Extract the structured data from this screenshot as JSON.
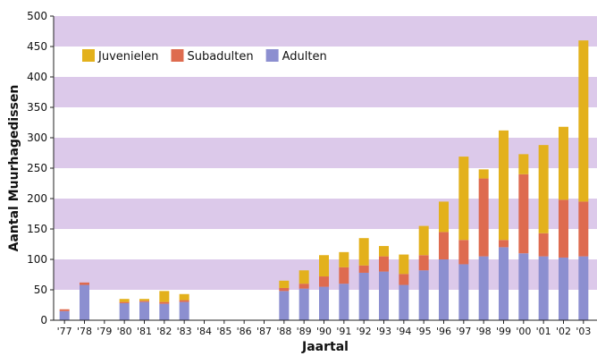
{
  "chart_data": {
    "type": "bar",
    "stacked": true,
    "xlabel": "Jaartal",
    "ylabel": "Aantal Muurhagedissen",
    "ylim": [
      0,
      500
    ],
    "yticks": [
      0,
      50,
      100,
      150,
      200,
      250,
      300,
      350,
      400,
      450,
      500
    ],
    "grid": "alternating horizontal bands",
    "legend_position": "top-left",
    "categories": [
      "'77",
      "'78",
      "'79",
      "'80",
      "'81",
      "'82",
      "'83",
      "'84",
      "'85",
      "'86",
      "'87",
      "'88",
      "'89",
      "'90",
      "'91",
      "'92",
      "'93",
      "'94",
      "'95",
      "'96",
      "'97",
      "'98",
      "'99",
      "'00",
      "'01",
      "'02",
      "'03"
    ],
    "series": [
      {
        "name": "Adulten",
        "color": "#8c8fd0",
        "values": [
          15,
          58,
          0,
          28,
          30,
          27,
          30,
          0,
          0,
          0,
          0,
          48,
          52,
          55,
          60,
          78,
          80,
          58,
          82,
          100,
          92,
          105,
          120,
          110,
          105,
          103,
          105
        ]
      },
      {
        "name": "Subadulten",
        "color": "#de6b4f",
        "values": [
          3,
          4,
          0,
          2,
          2,
          3,
          3,
          0,
          0,
          0,
          0,
          5,
          8,
          17,
          27,
          12,
          25,
          18,
          25,
          45,
          40,
          128,
          12,
          130,
          38,
          95,
          90
        ]
      },
      {
        "name": "Juvenielen",
        "color": "#e3b11c",
        "values": [
          0,
          0,
          0,
          5,
          3,
          18,
          10,
          0,
          0,
          0,
          0,
          12,
          22,
          35,
          25,
          45,
          17,
          32,
          48,
          50,
          137,
          15,
          180,
          33,
          145,
          120,
          265
        ]
      }
    ]
  }
}
